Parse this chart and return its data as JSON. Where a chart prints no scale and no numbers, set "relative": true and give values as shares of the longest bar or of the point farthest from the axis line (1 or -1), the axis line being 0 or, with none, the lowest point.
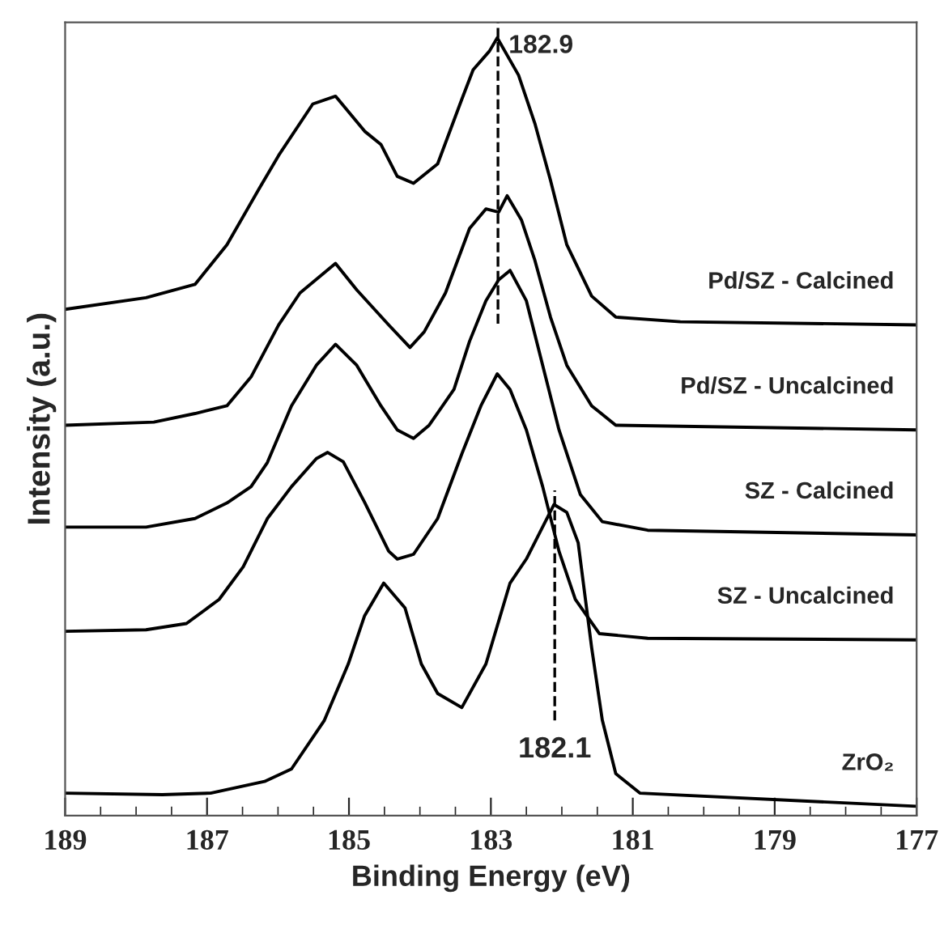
{
  "chart_data": {
    "type": "line",
    "relative": true,
    "xlabel": "Binding Energy (eV)",
    "ylabel": "Intensity (a.u.)",
    "xlim": [
      189,
      177
    ],
    "xticks": [
      189,
      187,
      185,
      183,
      181,
      179,
      177
    ],
    "tick_labels": "x",
    "grid": false,
    "legend": false,
    "marker": "none",
    "line_style": "solid",
    "series": [
      {
        "name": "Pd/SZ - Calcined",
        "color": "#000000",
        "x": [
          189,
          187.86,
          187.17,
          186.72,
          186.26,
          185.99,
          185.51,
          185.19,
          184.78,
          184.55,
          184.32,
          184.09,
          183.75,
          183.41,
          183.25,
          183.02,
          182.91,
          182.61,
          182.38,
          182.16,
          181.93,
          181.58,
          181.24,
          180.33,
          177
        ],
        "values": [
          0.651,
          0.666,
          0.683,
          0.734,
          0.807,
          0.849,
          0.915,
          0.925,
          0.88,
          0.863,
          0.822,
          0.813,
          0.838,
          0.921,
          0.959,
          0.983,
          1.0,
          0.952,
          0.89,
          0.817,
          0.734,
          0.668,
          0.641,
          0.635,
          0.631
        ]
      },
      {
        "name": "Pd/SZ - Uncalcined",
        "color": "#000000",
        "x": [
          189,
          187.75,
          187.17,
          186.72,
          186.38,
          185.99,
          185.69,
          185.19,
          184.89,
          184.44,
          184.14,
          183.94,
          183.64,
          183.3,
          183.07,
          182.89,
          182.77,
          182.57,
          182.38,
          182.16,
          181.93,
          181.58,
          181.24,
          177
        ],
        "values": [
          0.502,
          0.506,
          0.517,
          0.527,
          0.564,
          0.631,
          0.672,
          0.71,
          0.676,
          0.631,
          0.602,
          0.622,
          0.672,
          0.755,
          0.78,
          0.776,
          0.797,
          0.766,
          0.714,
          0.641,
          0.579,
          0.527,
          0.502,
          0.496
        ]
      },
      {
        "name": "SZ - Calcined",
        "color": "#000000",
        "x": [
          189,
          187.86,
          187.17,
          186.72,
          186.38,
          186.15,
          185.81,
          185.46,
          185.19,
          184.89,
          184.55,
          184.32,
          184.09,
          183.87,
          183.52,
          183.3,
          183.07,
          182.89,
          182.73,
          182.5,
          182.27,
          182.04,
          181.74,
          181.43,
          180.79,
          177
        ],
        "values": [
          0.371,
          0.371,
          0.382,
          0.402,
          0.423,
          0.454,
          0.527,
          0.579,
          0.606,
          0.579,
          0.527,
          0.496,
          0.485,
          0.502,
          0.548,
          0.61,
          0.662,
          0.689,
          0.701,
          0.662,
          0.579,
          0.496,
          0.413,
          0.378,
          0.367,
          0.361
        ]
      },
      {
        "name": "SZ - Uncalcined",
        "color": "#000000",
        "x": [
          189,
          187.86,
          187.29,
          186.83,
          186.49,
          186.15,
          185.81,
          185.46,
          185.3,
          185.08,
          184.78,
          184.44,
          184.32,
          184.09,
          183.75,
          183.41,
          183.14,
          182.91,
          182.73,
          182.5,
          182.27,
          182.04,
          181.81,
          181.47,
          180.79,
          177
        ],
        "values": [
          0.237,
          0.239,
          0.247,
          0.278,
          0.32,
          0.382,
          0.423,
          0.459,
          0.467,
          0.455,
          0.403,
          0.34,
          0.33,
          0.336,
          0.382,
          0.465,
          0.527,
          0.568,
          0.548,
          0.496,
          0.423,
          0.34,
          0.278,
          0.234,
          0.228,
          0.226
        ]
      },
      {
        "name": "ZrO₂",
        "color": "#000000",
        "x": [
          189,
          187.63,
          186.95,
          186.19,
          185.81,
          185.35,
          185.01,
          184.78,
          184.51,
          184.21,
          183.98,
          183.75,
          183.41,
          183.07,
          182.73,
          182.5,
          182.11,
          181.93,
          181.77,
          181.58,
          181.43,
          181.24,
          180.9,
          177
        ],
        "values": [
          0.029,
          0.027,
          0.029,
          0.044,
          0.06,
          0.122,
          0.195,
          0.257,
          0.299,
          0.267,
          0.195,
          0.157,
          0.139,
          0.195,
          0.299,
          0.33,
          0.4,
          0.39,
          0.351,
          0.216,
          0.123,
          0.054,
          0.029,
          0.012
        ]
      }
    ],
    "ref_lines": [
      {
        "axis": "x",
        "value": 182.9,
        "label": "182.9",
        "color": "#000000",
        "line_style": "dashed"
      },
      {
        "axis": "x",
        "value": 182.1,
        "label": "182.1",
        "color": "#000000",
        "line_style": "dashed"
      }
    ]
  }
}
